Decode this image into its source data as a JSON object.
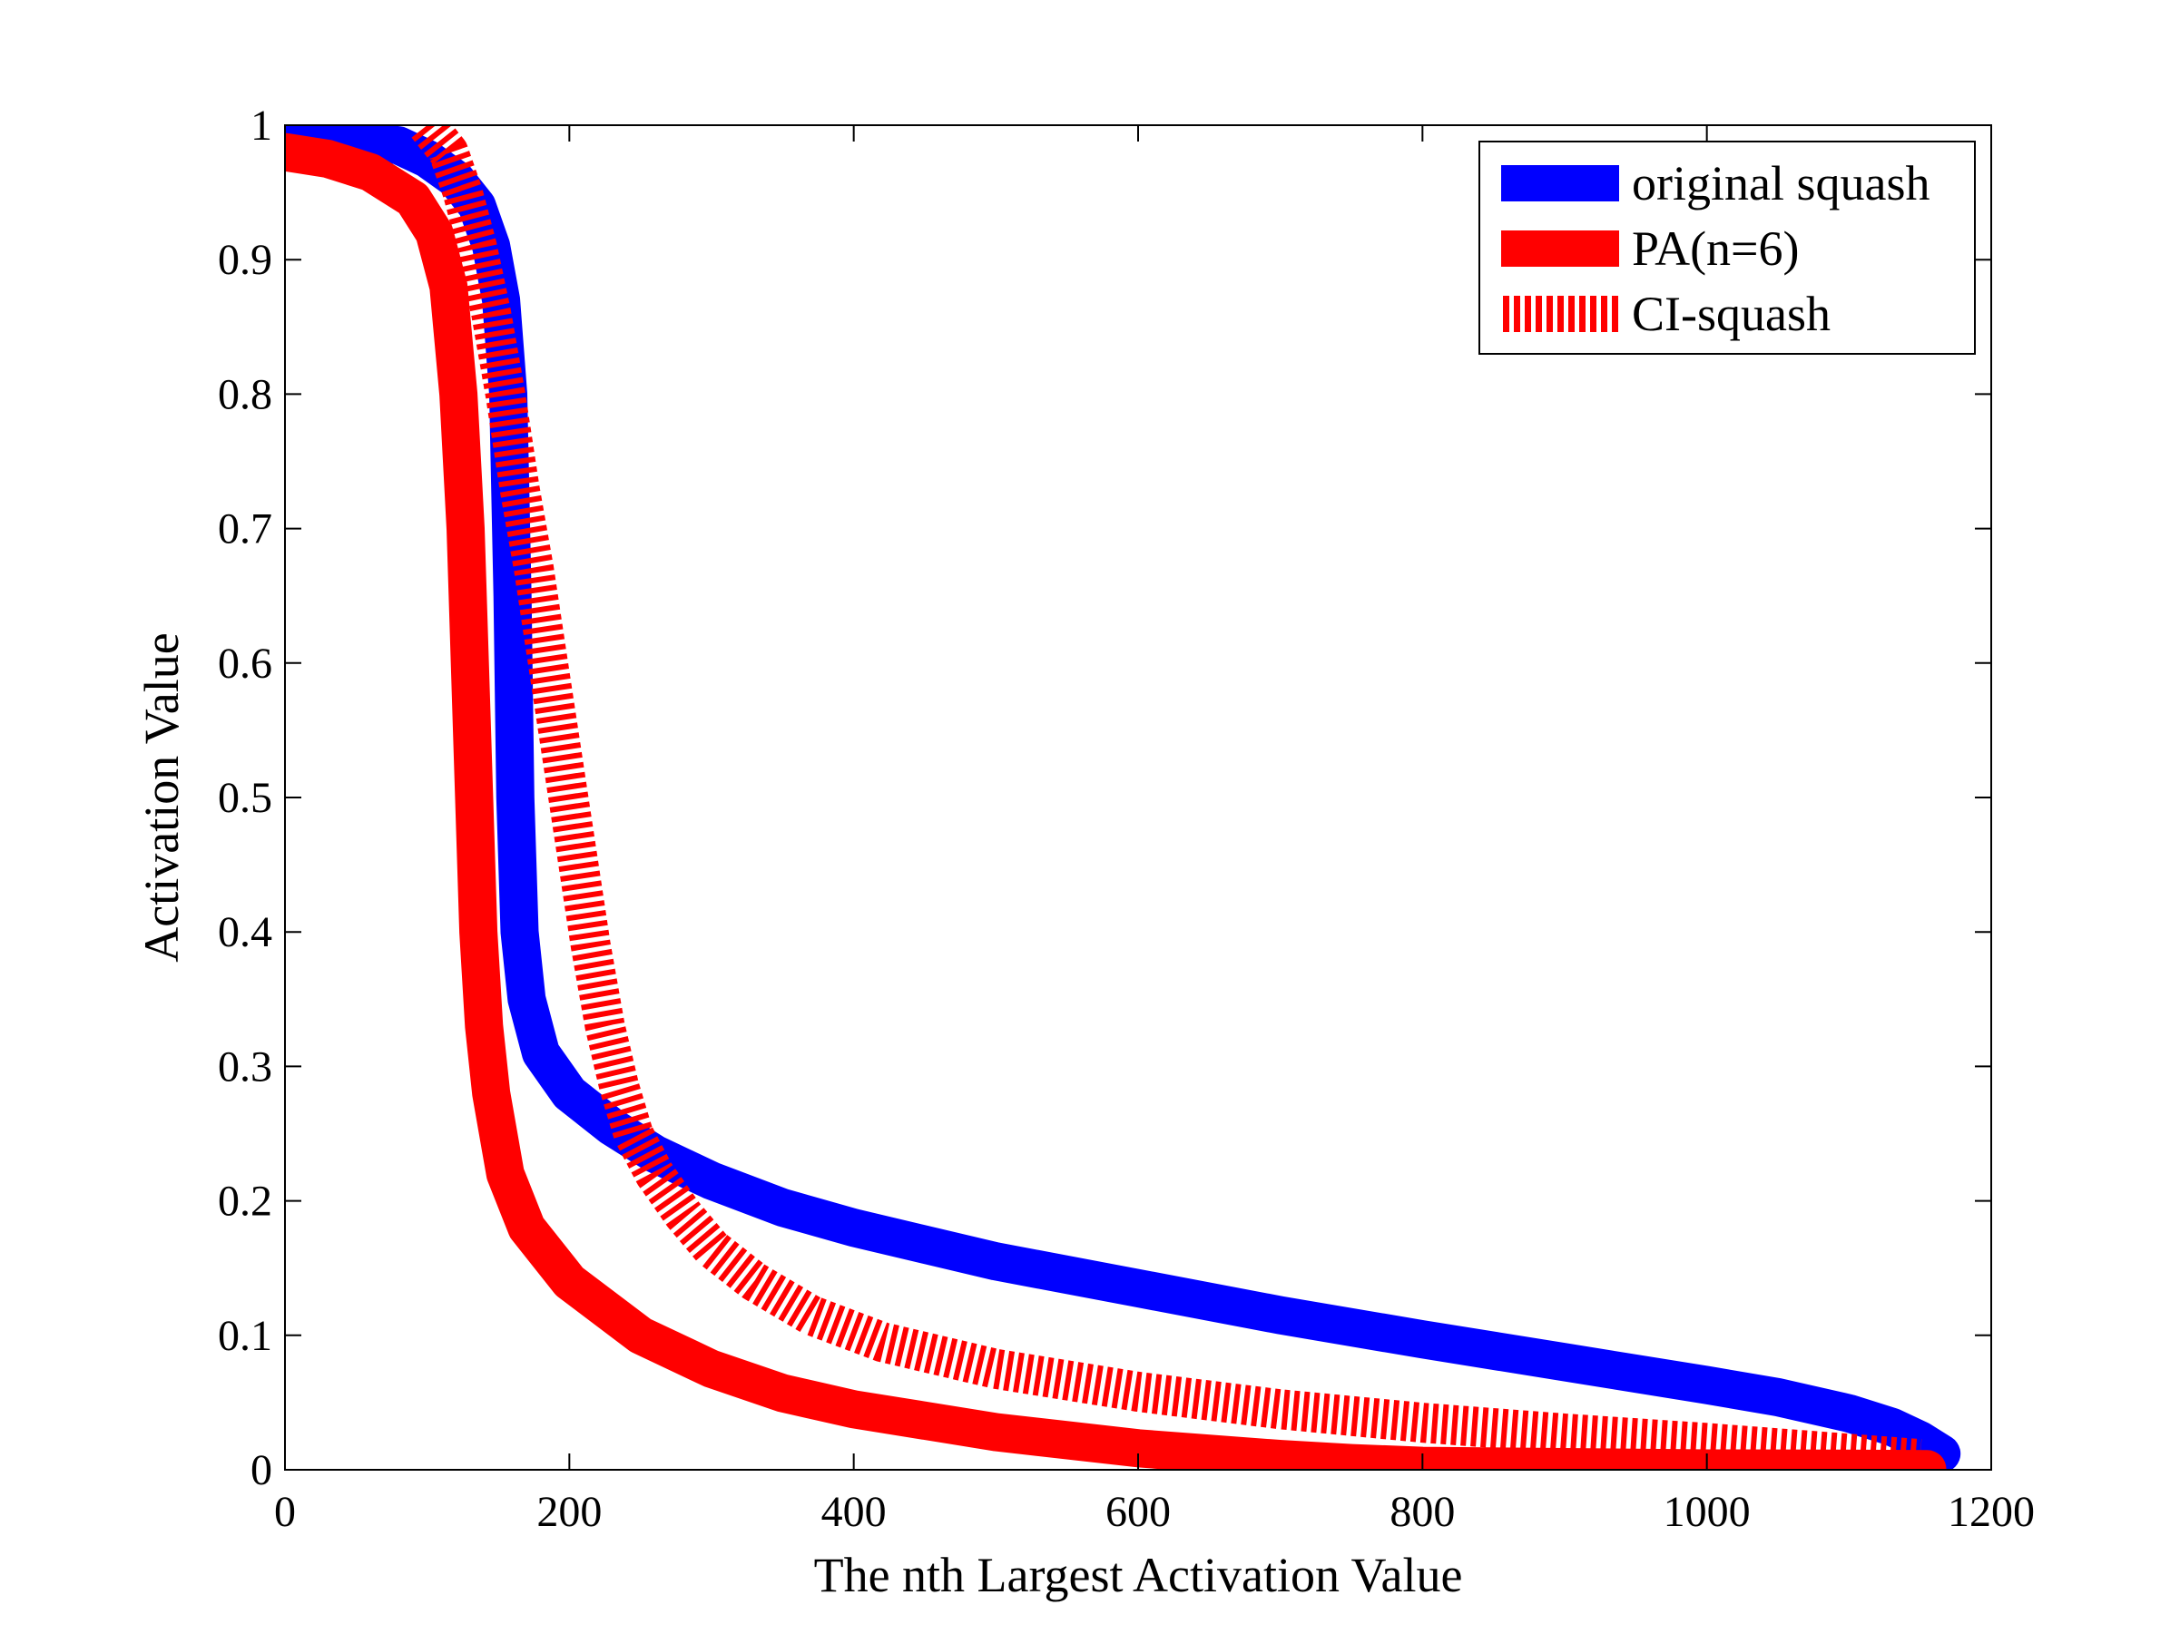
{
  "chart_data": {
    "type": "line",
    "title": "",
    "xlabel": "The nth Largest Activation Value",
    "ylabel": "Activation Value",
    "xlim": [
      0,
      1200
    ],
    "ylim": [
      0,
      1
    ],
    "xticks": [
      0,
      200,
      400,
      600,
      800,
      1000,
      1200
    ],
    "xtick_labels": [
      "0",
      "200",
      "400",
      "600",
      "800",
      "1000",
      "1200"
    ],
    "yticks": [
      0,
      0.1,
      0.2,
      0.3,
      0.4,
      0.5,
      0.6,
      0.7,
      0.8,
      0.9,
      1
    ],
    "ytick_labels": [
      "0",
      "0.1",
      "0.2",
      "0.3",
      "0.4",
      "0.5",
      "0.6",
      "0.7",
      "0.8",
      "0.9",
      "1"
    ],
    "grid": false,
    "legend_position": "top-right",
    "series": [
      {
        "name": "original squash",
        "color": "#0000ff",
        "style": "solid",
        "x": [
          0,
          40,
          80,
          100,
          120,
          135,
          145,
          152,
          157,
          160,
          162,
          165,
          170,
          180,
          200,
          230,
          260,
          300,
          350,
          400,
          500,
          600,
          700,
          800,
          900,
          1000,
          1050,
          1100,
          1130,
          1150,
          1165
        ],
        "y": [
          0.99,
          0.99,
          0.985,
          0.975,
          0.96,
          0.94,
          0.91,
          0.87,
          0.8,
          0.65,
          0.5,
          0.4,
          0.35,
          0.31,
          0.28,
          0.255,
          0.235,
          0.215,
          0.195,
          0.18,
          0.155,
          0.135,
          0.115,
          0.097,
          0.08,
          0.063,
          0.054,
          0.042,
          0.032,
          0.022,
          0.012
        ]
      },
      {
        "name": "PA(n=6)",
        "color": "#ff0000",
        "style": "solid",
        "x": [
          0,
          30,
          60,
          90,
          105,
          115,
          122,
          127,
          130,
          133,
          136,
          140,
          145,
          155,
          170,
          200,
          250,
          300,
          350,
          400,
          500,
          600,
          700,
          750,
          800,
          900,
          1000,
          1100,
          1155
        ],
        "y": [
          0.98,
          0.975,
          0.965,
          0.945,
          0.92,
          0.88,
          0.8,
          0.7,
          0.6,
          0.5,
          0.4,
          0.33,
          0.28,
          0.22,
          0.18,
          0.14,
          0.1,
          0.075,
          0.057,
          0.045,
          0.028,
          0.016,
          0.008,
          0.005,
          0.003,
          0.002,
          0.001,
          0.0008,
          0.0005
        ]
      },
      {
        "name": "CI-squash",
        "color": "#ff0000",
        "style": "hatched",
        "x": [
          100,
          115,
          125,
          135,
          145,
          155,
          165,
          175,
          185,
          195,
          205,
          215,
          225,
          235,
          245,
          260,
          280,
          300,
          330,
          370,
          420,
          500,
          600,
          700,
          800,
          900,
          1000,
          1100,
          1150
        ],
        "y": [
          1.0,
          0.98,
          0.95,
          0.91,
          0.86,
          0.8,
          0.73,
          0.67,
          0.6,
          0.53,
          0.46,
          0.39,
          0.33,
          0.285,
          0.25,
          0.22,
          0.19,
          0.165,
          0.14,
          0.115,
          0.095,
          0.075,
          0.058,
          0.045,
          0.035,
          0.027,
          0.02,
          0.012,
          0.008
        ]
      }
    ]
  }
}
